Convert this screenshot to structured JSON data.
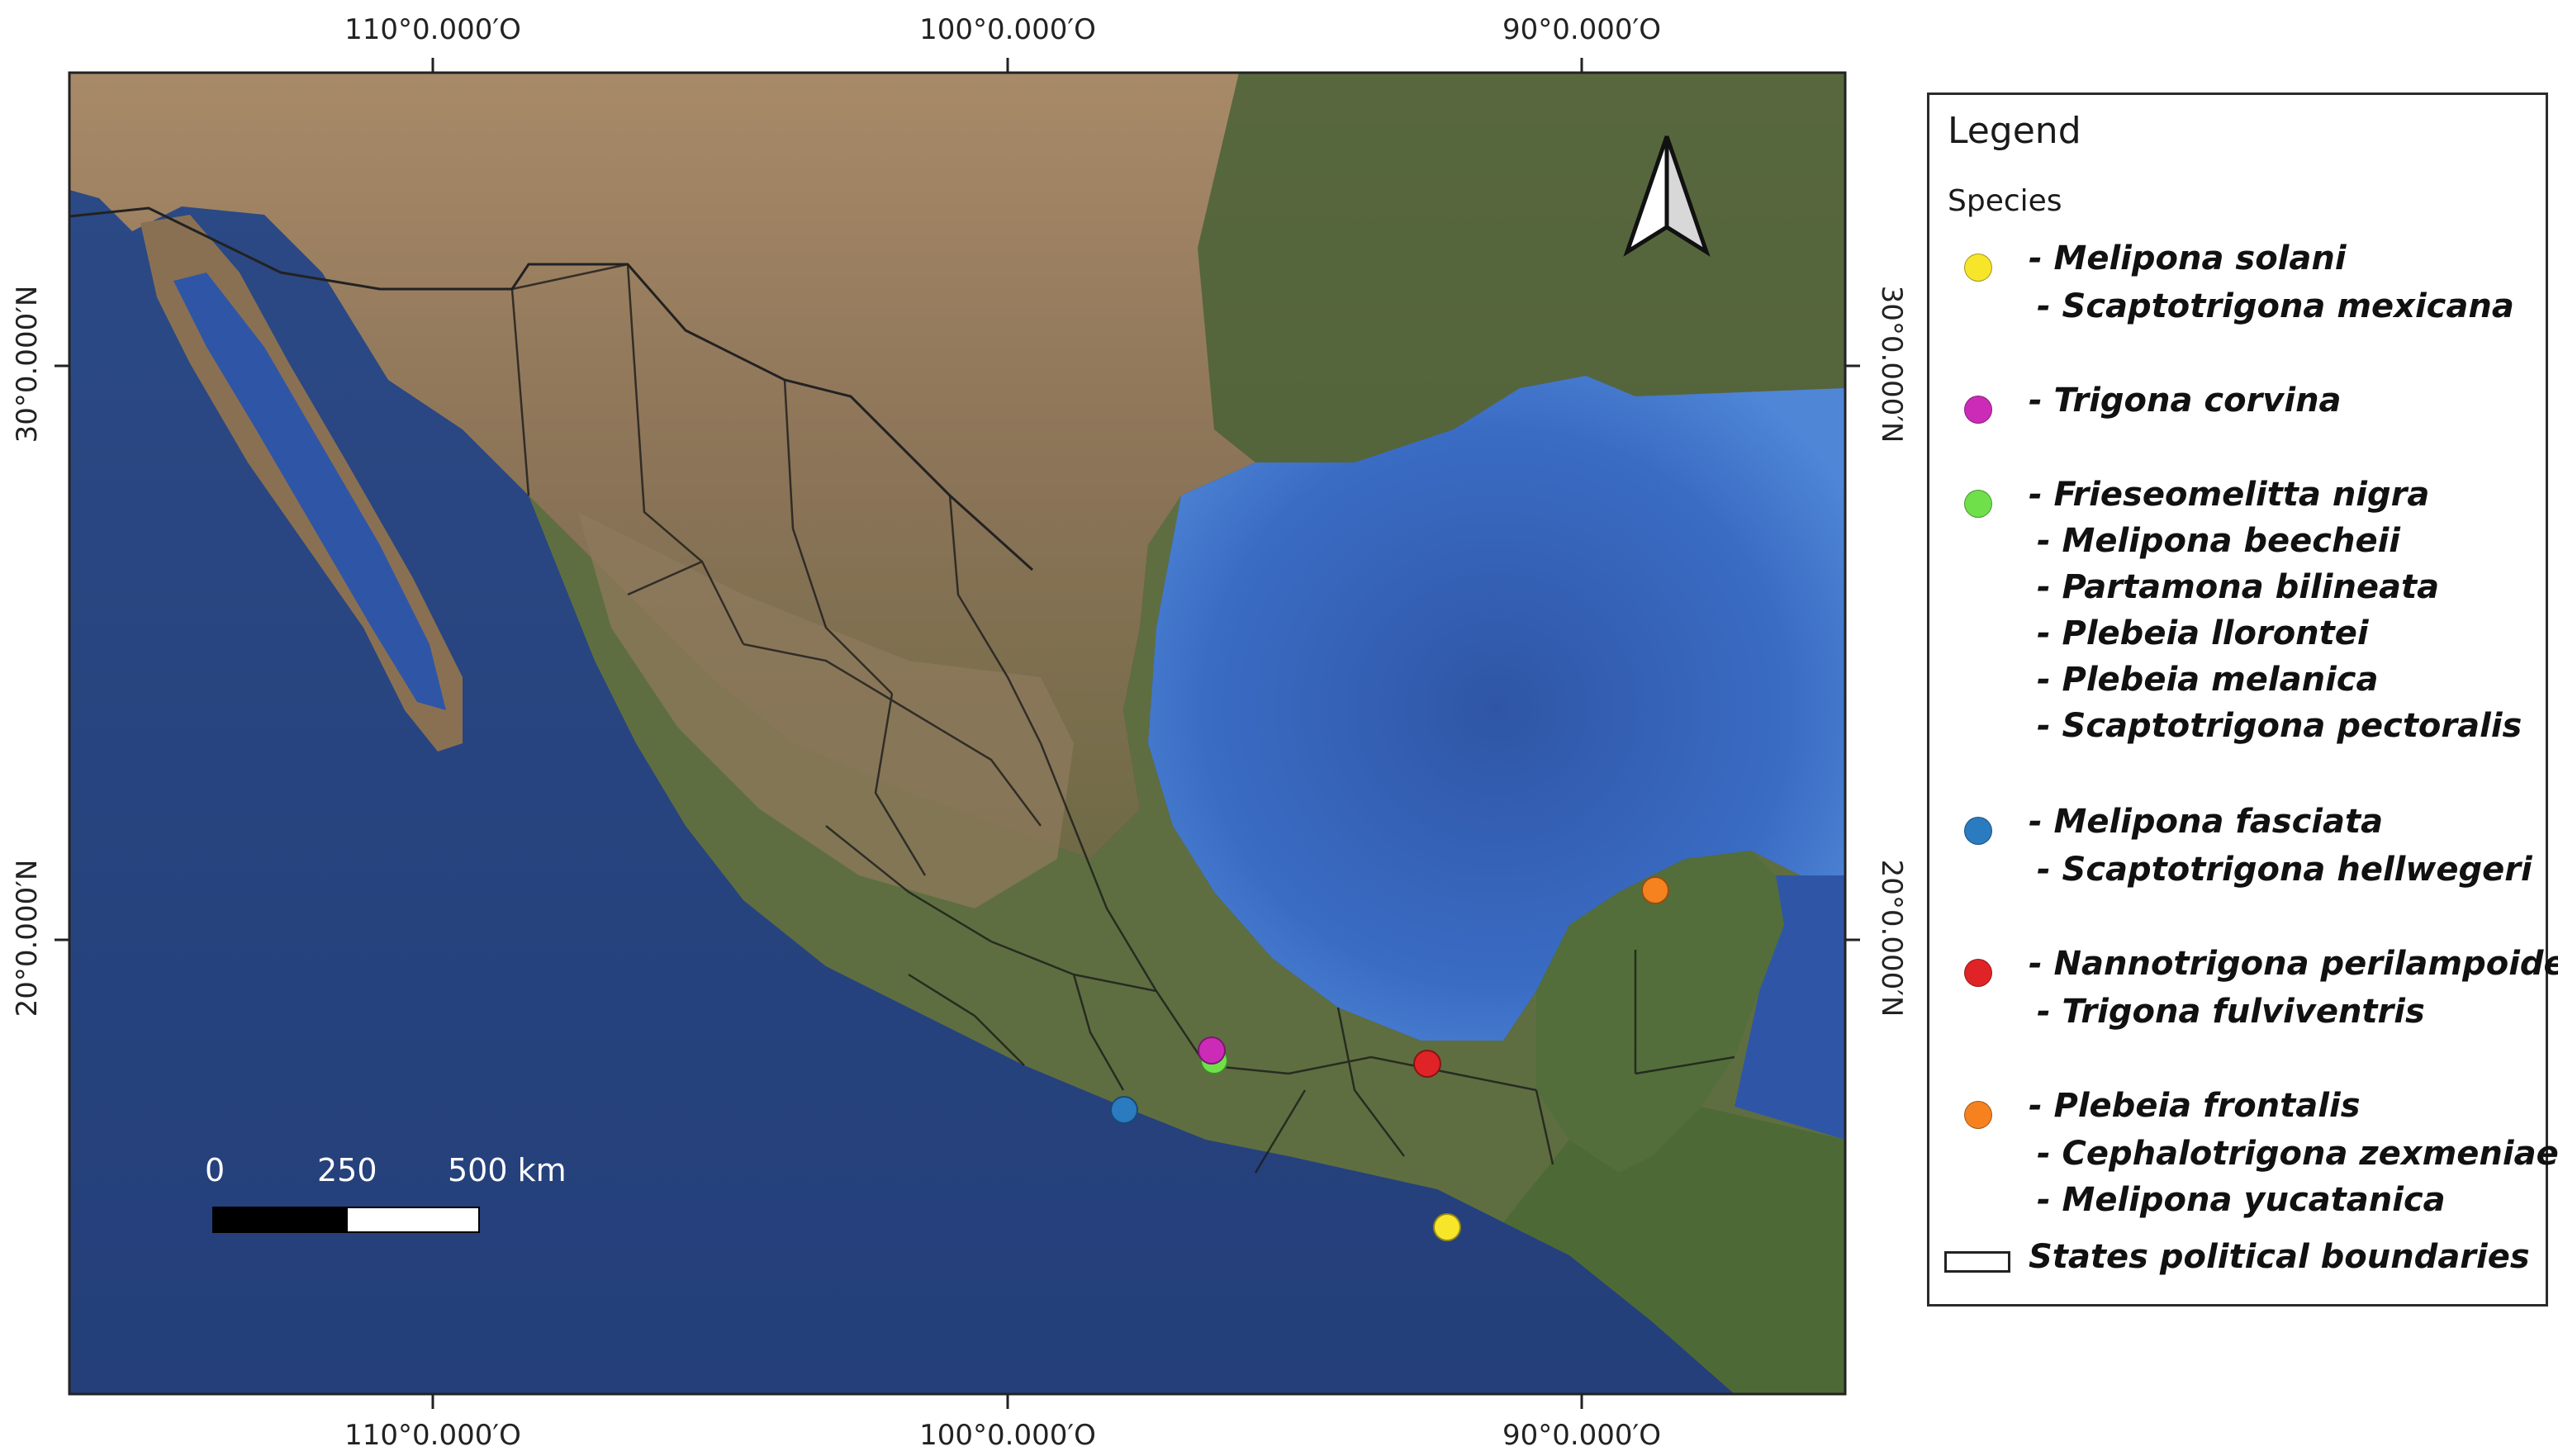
{
  "coordinates": {
    "top": [
      "110°0.000′O",
      "100°0.000′O",
      "90°0.000′O"
    ],
    "bottom": [
      "110°0.000′O",
      "100°0.000′O",
      "90°0.000′O"
    ],
    "left": [
      "30°0.000′N",
      "20°0.000′N"
    ],
    "right": [
      "30°0.000′N",
      "20°0.000′N"
    ]
  },
  "scale_bar": {
    "labels": [
      "0",
      "250",
      "500 km"
    ]
  },
  "north_arrow": {
    "icon": "north-arrow-icon"
  },
  "legend": {
    "title": "Legend",
    "subtitle": "Species",
    "groups": [
      {
        "color": "#f7e52a",
        "species": [
          "- Melipona solani",
          "- Scaptotrigona mexicana"
        ]
      },
      {
        "color": "#cc2bb8",
        "species": [
          "- Trigona corvina"
        ]
      },
      {
        "color": "#6fe04a",
        "species": [
          "- Frieseomelitta nigra",
          "- Melipona beecheii",
          "- Partamona bilineata",
          "- Plebeia llorontei",
          "- Plebeia melanica",
          "- Scaptotrigona pectoralis"
        ]
      },
      {
        "color": "#2a7bc0",
        "species": [
          "- Melipona fasciata",
          "- Scaptotrigona hellwegeri"
        ]
      },
      {
        "color": "#e02326",
        "species": [
          "- Nannotrigona perilampoides",
          "- Trigona fulviventris"
        ]
      },
      {
        "color": "#f5821f",
        "species": [
          "- Plebeia frontalis",
          "- Cephalotrigona zexmeniae",
          "- Melipona yucatanica"
        ]
      }
    ],
    "boundary_label": "States political boundaries"
  },
  "markers": [
    {
      "name": "marker-yellow",
      "color": "#f7e52a"
    },
    {
      "name": "marker-magenta",
      "color": "#cc2bb8"
    },
    {
      "name": "marker-green",
      "color": "#6fe04a"
    },
    {
      "name": "marker-blue",
      "color": "#2a7bc0"
    },
    {
      "name": "marker-red",
      "color": "#e02326"
    },
    {
      "name": "marker-orange",
      "color": "#f5821f"
    }
  ]
}
